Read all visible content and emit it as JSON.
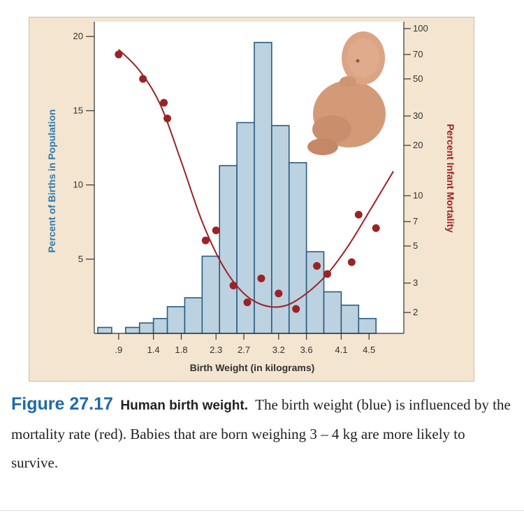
{
  "figure": {
    "label": "Figure 27.17",
    "title": "Human birth weight.",
    "caption": "The birth weight (blue) is influenced by the mortality rate (red). Babies that are born weighing 3 – 4   kg are more likely to survive."
  },
  "chart_data": {
    "type": "bar",
    "xlabel": "Birth Weight (in kilograms)",
    "ylabel_left": "Percent of Births in Population",
    "ylabel_right": "Percent Infant Mortality",
    "x_ticks": [
      ".9",
      "1.4",
      "1.8",
      "2.3",
      "2.7",
      "3.2",
      "3.6",
      "4.1",
      "4.5"
    ],
    "y_left_ticks": [
      5,
      10,
      15,
      20
    ],
    "y_left_range": [
      0,
      21
    ],
    "y_right_ticks": [
      "2",
      "3",
      "5",
      "7",
      "10",
      "20",
      "30",
      "50",
      "70",
      "100"
    ],
    "y_right_scale": "log",
    "y_right_range": [
      1.5,
      110
    ],
    "grid": false,
    "histogram": {
      "series_name": "Percent of Births in Population",
      "color": "#bcd2e0",
      "edge_color": "#2a5c80",
      "bins": [
        {
          "x0": 0.6,
          "x1": 0.8,
          "value": 0.4
        },
        {
          "x0": 1.0,
          "x1": 1.2,
          "value": 0.4
        },
        {
          "x0": 1.2,
          "x1": 1.4,
          "value": 0.7
        },
        {
          "x0": 1.4,
          "x1": 1.6,
          "value": 1.0
        },
        {
          "x0": 1.6,
          "x1": 1.85,
          "value": 1.8
        },
        {
          "x0": 1.85,
          "x1": 2.1,
          "value": 2.4
        },
        {
          "x0": 2.1,
          "x1": 2.35,
          "value": 5.2
        },
        {
          "x0": 2.35,
          "x1": 2.6,
          "value": 11.3
        },
        {
          "x0": 2.6,
          "x1": 2.85,
          "value": 14.2
        },
        {
          "x0": 2.85,
          "x1": 3.1,
          "value": 19.6
        },
        {
          "x0": 3.1,
          "x1": 3.35,
          "value": 14.0
        },
        {
          "x0": 3.35,
          "x1": 3.6,
          "value": 11.5
        },
        {
          "x0": 3.6,
          "x1": 3.85,
          "value": 5.5
        },
        {
          "x0": 3.85,
          "x1": 4.1,
          "value": 2.8
        },
        {
          "x0": 4.1,
          "x1": 4.35,
          "value": 1.9
        },
        {
          "x0": 4.35,
          "x1": 4.6,
          "value": 1.0
        }
      ]
    },
    "mortality_points": {
      "series_name": "Percent Infant Mortality",
      "color": "#9b2226",
      "x": [
        0.9,
        1.25,
        1.55,
        1.6,
        2.15,
        2.3,
        2.55,
        2.75,
        2.95,
        3.2,
        3.45,
        3.75,
        3.9,
        4.25,
        4.35,
        4.6
      ],
      "y": [
        70,
        50,
        36,
        29,
        5.4,
        6.2,
        2.9,
        2.3,
        3.2,
        2.6,
        2.1,
        3.8,
        3.4,
        4.0,
        7.7,
        6.4
      ]
    },
    "mortality_curve": {
      "x": [
        0.9,
        1.2,
        1.5,
        1.8,
        2.1,
        2.4,
        2.7,
        3.0,
        3.3,
        3.6,
        3.9,
        4.2,
        4.5,
        4.85
      ],
      "y": [
        75,
        56,
        35,
        16,
        7.0,
        3.8,
        2.6,
        2.2,
        2.2,
        2.6,
        3.4,
        5.0,
        8.0,
        14
      ]
    }
  }
}
